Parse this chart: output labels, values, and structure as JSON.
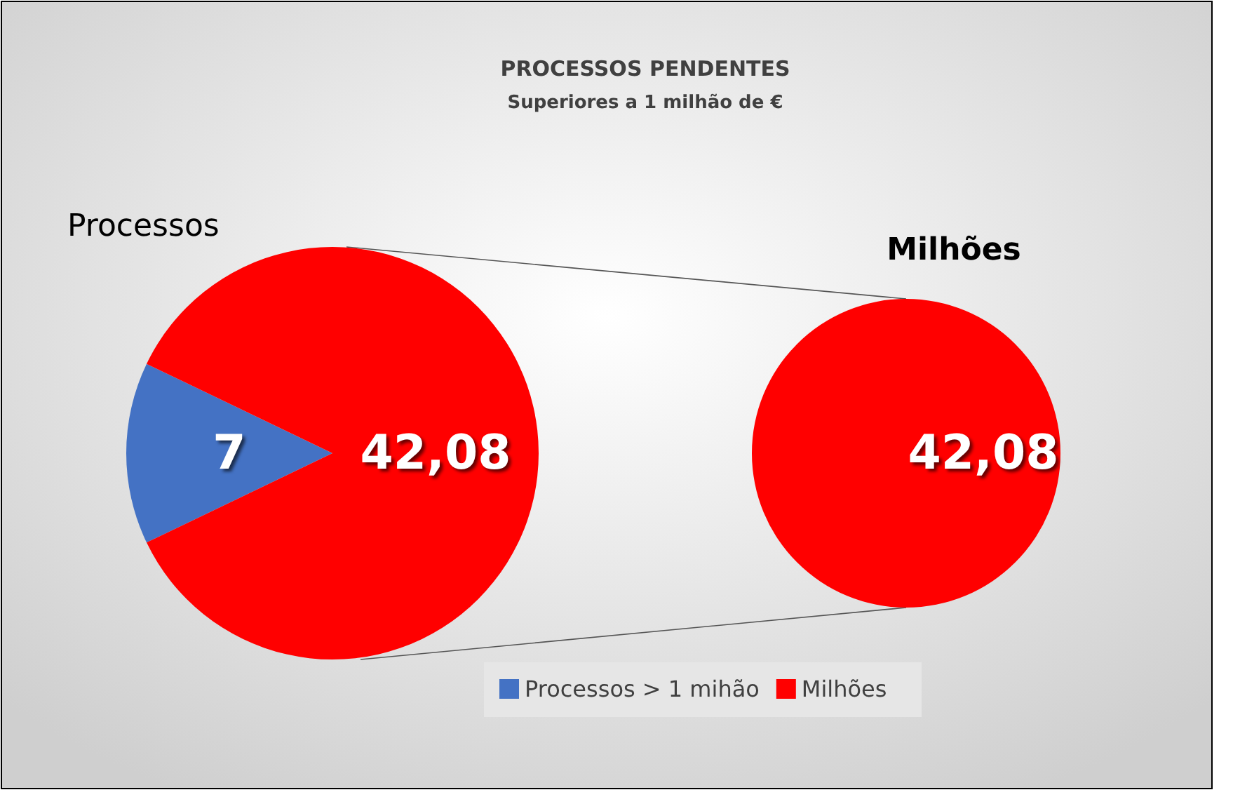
{
  "chart_data": [
    {
      "type": "pie",
      "title": "PROCESSOS PENDENTES",
      "subtitle": "Superiores a 1 milhão de €",
      "annotations": [
        "Processos"
      ],
      "categories": [
        "Processos > 1 mihão",
        "Milhões"
      ],
      "values": [
        7,
        42.08
      ],
      "value_labels": [
        "7",
        "42,08"
      ],
      "colors": [
        "#4472c4",
        "#ff0000"
      ],
      "legend": "bottom"
    },
    {
      "type": "pie",
      "categories": [
        "Milhões"
      ],
      "values": [
        42.08
      ],
      "value_labels": [
        "42,08"
      ],
      "colors": [
        "#ff0000"
      ]
    }
  ]
}
